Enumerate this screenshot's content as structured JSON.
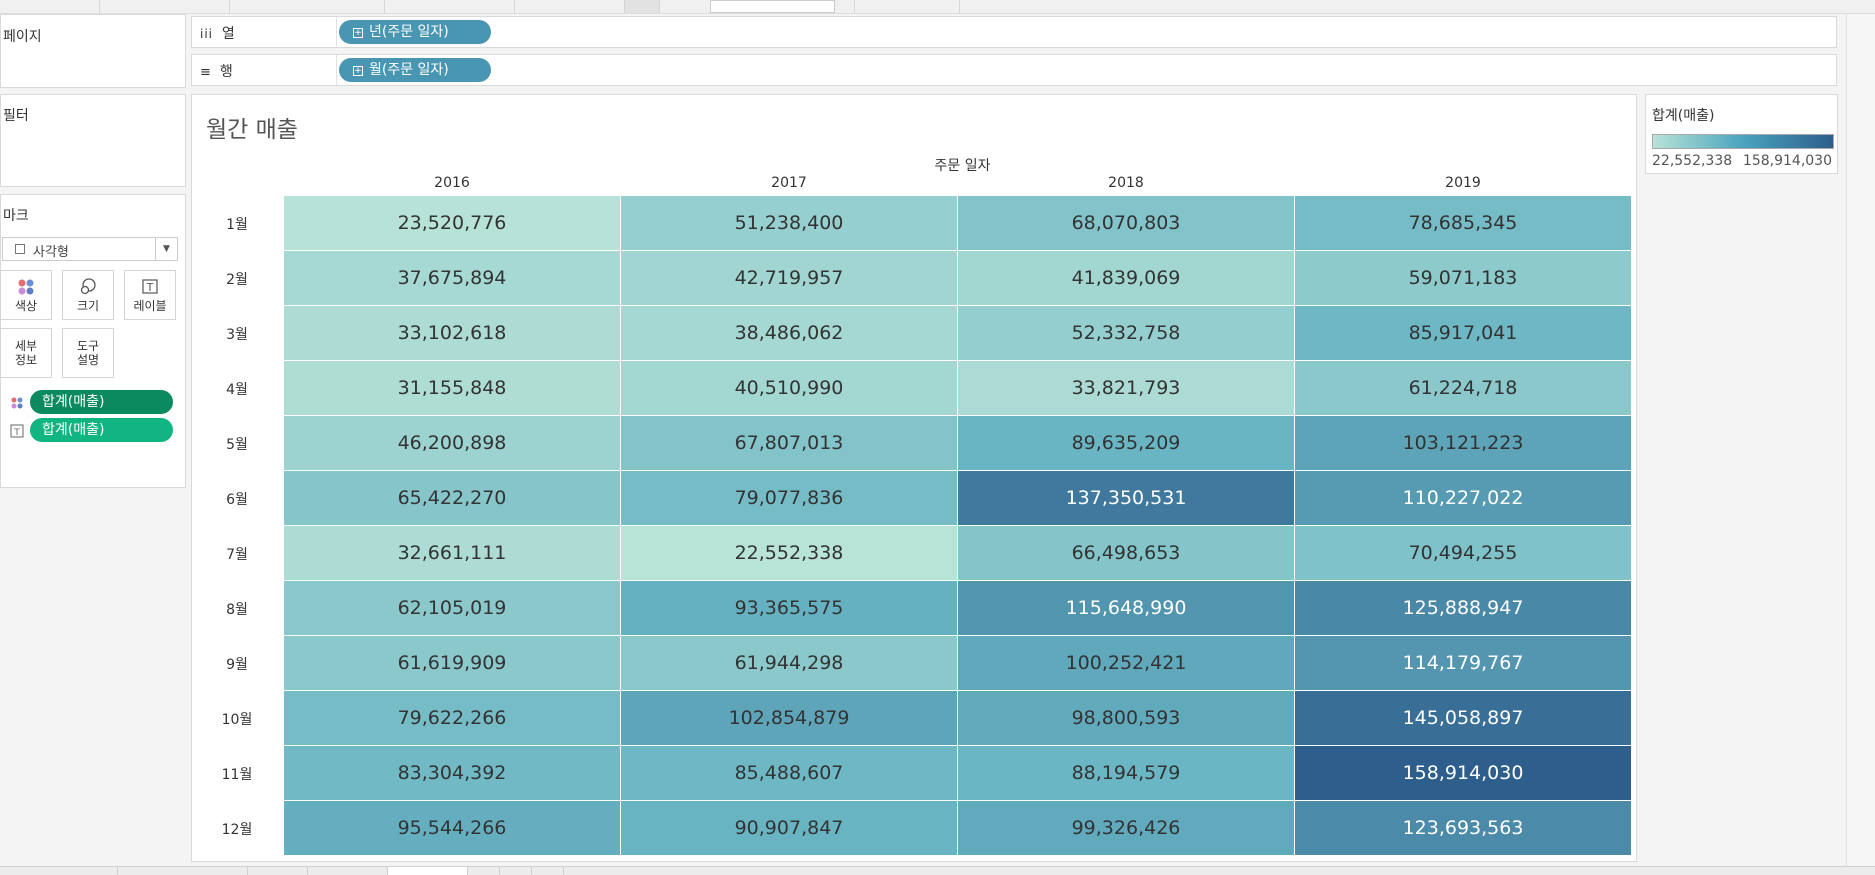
{
  "left": {
    "pages_label": "페이지",
    "filters_label": "필터",
    "marks": {
      "label": "마크",
      "mark_type": "사각형",
      "buttons": {
        "color": "색상",
        "size": "크기",
        "label": "레이블",
        "detail": "세부\n정보",
        "tooltip": "도구\n설명"
      },
      "pills": [
        {
          "text": "합계(매출)",
          "icon": "color-dots-icon",
          "color": "#0b8a5f"
        },
        {
          "text": "합계(매출)",
          "icon": "text-label-icon",
          "color": "#11b582"
        }
      ]
    }
  },
  "shelves": {
    "columns": {
      "label": "열",
      "icon": "columns-icon",
      "pill": "년(주문 일자)"
    },
    "rows": {
      "label": "행",
      "icon": "rows-icon",
      "pill": "월(주문 일자)"
    }
  },
  "view": {
    "title": "월간 매출",
    "column_group_label": "주문 일자"
  },
  "legend": {
    "title": "합계(매출)",
    "min_label": "22,552,338",
    "max_label": "158,914,030",
    "colors": {
      "low": "#b8e3d7",
      "mid": "#4aa3be",
      "high": "#2d5e8c"
    }
  },
  "chart_data": {
    "type": "heatmap",
    "title": "월간 매출",
    "xlabel": "주문 일자",
    "ylabel": "",
    "x": [
      "2016",
      "2017",
      "2018",
      "2019"
    ],
    "y": [
      "1월",
      "2월",
      "3월",
      "4월",
      "5월",
      "6월",
      "7월",
      "8월",
      "9월",
      "10월",
      "11월",
      "12월"
    ],
    "values": [
      [
        23520776,
        51238400,
        68070803,
        78685345
      ],
      [
        37675894,
        42719957,
        41839069,
        59071183
      ],
      [
        33102618,
        38486062,
        52332758,
        85917041
      ],
      [
        31155848,
        40510990,
        33821793,
        61224718
      ],
      [
        46200898,
        67807013,
        89635209,
        103121223
      ],
      [
        65422270,
        79077836,
        137350531,
        110227022
      ],
      [
        32661111,
        22552338,
        66498653,
        70494255
      ],
      [
        62105019,
        93365575,
        115648990,
        125888947
      ],
      [
        61619909,
        61944298,
        100252421,
        114179767
      ],
      [
        79622266,
        102854879,
        98800593,
        145058897
      ],
      [
        83304392,
        85488607,
        88194579,
        158914030
      ],
      [
        95544266,
        90907847,
        99326426,
        123693563
      ]
    ],
    "value_labels": [
      [
        "23,520,776",
        "51,238,400",
        "68,070,803",
        "78,685,345"
      ],
      [
        "37,675,894",
        "42,719,957",
        "41,839,069",
        "59,071,183"
      ],
      [
        "33,102,618",
        "38,486,062",
        "52,332,758",
        "85,917,041"
      ],
      [
        "31,155,848",
        "40,510,990",
        "33,821,793",
        "61,224,718"
      ],
      [
        "46,200,898",
        "67,807,013",
        "89,635,209",
        "103,121,223"
      ],
      [
        "65,422,270",
        "79,077,836",
        "137,350,531",
        "110,227,022"
      ],
      [
        "32,661,111",
        "22,552,338",
        "66,498,653",
        "70,494,255"
      ],
      [
        "62,105,019",
        "93,365,575",
        "115,648,990",
        "125,888,947"
      ],
      [
        "61,619,909",
        "61,944,298",
        "100,252,421",
        "114,179,767"
      ],
      [
        "79,622,266",
        "102,854,879",
        "98,800,593",
        "145,058,897"
      ],
      [
        "83,304,392",
        "85,488,607",
        "88,194,579",
        "158,914,030"
      ],
      [
        "95,544,266",
        "90,907,847",
        "99,326,426",
        "123,693,563"
      ]
    ],
    "color_range": [
      22552338,
      158914030
    ]
  }
}
